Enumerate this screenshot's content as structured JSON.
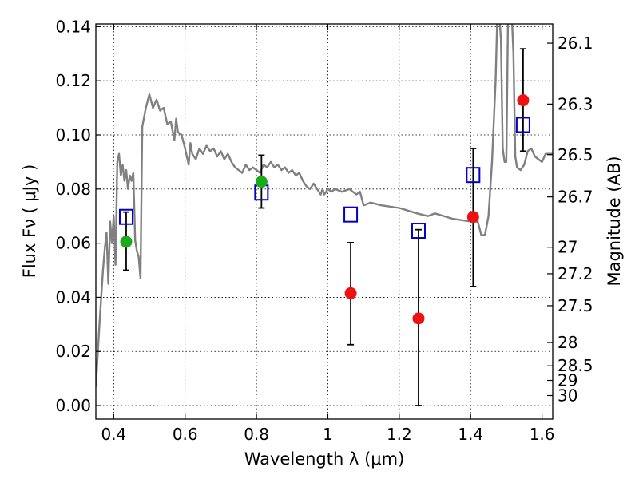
{
  "chart_data": {
    "type": "scatter",
    "xlabel": "Wavelength  λ (μm)",
    "ylabel": "Flux  Fν  ( μJy )",
    "ylabel_right": "Magnitude (AB)",
    "xlim": [
      0.35,
      1.63
    ],
    "ylim": [
      -0.005,
      0.141
    ],
    "grid": true,
    "x_ticks": [
      0.4,
      0.6,
      0.8,
      1.0,
      1.2,
      1.4,
      1.6
    ],
    "x_tick_labels": [
      "0.4",
      "0.6",
      "0.8",
      "1",
      "1.2",
      "1.4",
      "1.6"
    ],
    "y_ticks": [
      0.0,
      0.02,
      0.04,
      0.06,
      0.08,
      0.1,
      0.12,
      0.14
    ],
    "y_tick_labels": [
      "0.00",
      "0.02",
      "0.04",
      "0.06",
      "0.08",
      "0.10",
      "0.12",
      "0.14"
    ],
    "right_ticks": [
      {
        "label": "26.1",
        "flux": 0.1339
      },
      {
        "label": "26.3",
        "flux": 0.1114
      },
      {
        "label": "26.5",
        "flux": 0.0927
      },
      {
        "label": "26.7",
        "flux": 0.0771
      },
      {
        "label": "27",
        "flux": 0.0585
      },
      {
        "label": "27.2",
        "flux": 0.0487
      },
      {
        "label": "27.5",
        "flux": 0.0369
      },
      {
        "label": "28",
        "flux": 0.0233
      },
      {
        "label": "28.5",
        "flux": 0.0147
      },
      {
        "label": "29",
        "flux": 0.0093
      },
      {
        "label": "30",
        "flux": 0.0037
      }
    ],
    "colors": {
      "model": "#808080",
      "detections_green": "#1aaa1a",
      "detections_red": "#ee1111",
      "model_photometry": "#0000cc",
      "errorbar": "#000000",
      "grid": "#000000"
    },
    "series": [
      {
        "type": "line",
        "color": "#808080",
        "points": [
          [
            0.35,
            0.007
          ],
          [
            0.36,
            0.03
          ],
          [
            0.37,
            0.05
          ],
          [
            0.375,
            0.058
          ],
          [
            0.38,
            0.064
          ],
          [
            0.385,
            0.045
          ],
          [
            0.39,
            0.068
          ],
          [
            0.395,
            0.06
          ],
          [
            0.4,
            0.07
          ],
          [
            0.405,
            0.052
          ],
          [
            0.41,
            0.09
          ],
          [
            0.415,
            0.093
          ],
          [
            0.42,
            0.085
          ],
          [
            0.425,
            0.089
          ],
          [
            0.43,
            0.083
          ],
          [
            0.435,
            0.087
          ],
          [
            0.44,
            0.08
          ],
          [
            0.445,
            0.085
          ],
          [
            0.45,
            0.083
          ],
          [
            0.455,
            0.086
          ],
          [
            0.46,
            0.061
          ],
          [
            0.465,
            0.057
          ],
          [
            0.47,
            0.055
          ],
          [
            0.475,
            0.047
          ],
          [
            0.48,
            0.103
          ],
          [
            0.49,
            0.11
          ],
          [
            0.5,
            0.115
          ],
          [
            0.51,
            0.11
          ],
          [
            0.52,
            0.113
          ],
          [
            0.53,
            0.109
          ],
          [
            0.54,
            0.11
          ],
          [
            0.55,
            0.104
          ],
          [
            0.56,
            0.105
          ],
          [
            0.57,
            0.098
          ],
          [
            0.575,
            0.106
          ],
          [
            0.58,
            0.101
          ],
          [
            0.59,
            0.1
          ],
          [
            0.6,
            0.095
          ],
          [
            0.61,
            0.089
          ],
          [
            0.615,
            0.097
          ],
          [
            0.62,
            0.093
          ],
          [
            0.63,
            0.091
          ],
          [
            0.64,
            0.095
          ],
          [
            0.65,
            0.093
          ],
          [
            0.66,
            0.096
          ],
          [
            0.67,
            0.094
          ],
          [
            0.68,
            0.095
          ],
          [
            0.69,
            0.092
          ],
          [
            0.7,
            0.094
          ],
          [
            0.71,
            0.091
          ],
          [
            0.72,
            0.093
          ],
          [
            0.73,
            0.09
          ],
          [
            0.74,
            0.088
          ],
          [
            0.75,
            0.087
          ],
          [
            0.76,
            0.086
          ],
          [
            0.77,
            0.089
          ],
          [
            0.78,
            0.087
          ],
          [
            0.79,
            0.088
          ],
          [
            0.8,
            0.087
          ],
          [
            0.81,
            0.086
          ],
          [
            0.82,
            0.089
          ],
          [
            0.83,
            0.088
          ],
          [
            0.84,
            0.09
          ],
          [
            0.85,
            0.088
          ],
          [
            0.86,
            0.089
          ],
          [
            0.87,
            0.087
          ],
          [
            0.88,
            0.088
          ],
          [
            0.89,
            0.086
          ],
          [
            0.9,
            0.087
          ],
          [
            0.91,
            0.085
          ],
          [
            0.92,
            0.086
          ],
          [
            0.93,
            0.083
          ],
          [
            0.94,
            0.081
          ],
          [
            0.95,
            0.08
          ],
          [
            0.96,
            0.082
          ],
          [
            0.97,
            0.08
          ],
          [
            0.98,
            0.078
          ],
          [
            0.985,
            0.08
          ],
          [
            0.99,
            0.078
          ],
          [
            1.0,
            0.08
          ],
          [
            1.01,
            0.079
          ],
          [
            1.02,
            0.08
          ],
          [
            1.04,
            0.079
          ],
          [
            1.06,
            0.08
          ],
          [
            1.08,
            0.078
          ],
          [
            1.09,
            0.079
          ],
          [
            1.1,
            0.074
          ],
          [
            1.12,
            0.075
          ],
          [
            1.15,
            0.074
          ],
          [
            1.2,
            0.073
          ],
          [
            1.25,
            0.071
          ],
          [
            1.28,
            0.07
          ],
          [
            1.3,
            0.071
          ],
          [
            1.35,
            0.069
          ],
          [
            1.4,
            0.068
          ],
          [
            1.42,
            0.068
          ],
          [
            1.43,
            0.063
          ],
          [
            1.44,
            0.063
          ],
          [
            1.45,
            0.07
          ],
          [
            1.46,
            0.09
          ],
          [
            1.47,
            0.12
          ],
          [
            1.475,
            0.145
          ],
          [
            1.48,
            0.145
          ],
          [
            1.485,
            0.135
          ],
          [
            1.49,
            0.095
          ],
          [
            1.495,
            0.09
          ],
          [
            1.5,
            0.09
          ],
          [
            1.505,
            0.145
          ],
          [
            1.515,
            0.145
          ],
          [
            1.52,
            0.13
          ],
          [
            1.525,
            0.092
          ],
          [
            1.53,
            0.088
          ],
          [
            1.54,
            0.087
          ],
          [
            1.55,
            0.089
          ],
          [
            1.56,
            0.094
          ],
          [
            1.57,
            0.095
          ],
          [
            1.58,
            0.092
          ],
          [
            1.59,
            0.091
          ],
          [
            1.6,
            0.09
          ],
          [
            1.61,
            0.093
          ],
          [
            1.63,
            0.093
          ]
        ]
      },
      {
        "type": "scatter",
        "marker": "circle",
        "color": "#1aaa1a",
        "points": [
          {
            "x": 0.435,
            "y": 0.0605,
            "err_low": 0.0105,
            "err_high": 0.011
          },
          {
            "x": 0.814,
            "y": 0.0827,
            "err_low": 0.0097,
            "err_high": 0.0098
          }
        ]
      },
      {
        "type": "scatter",
        "marker": "circle",
        "color": "#ee1111",
        "points": [
          {
            "x": 1.064,
            "y": 0.0415,
            "err_low": 0.019,
            "err_high": 0.0187
          },
          {
            "x": 1.254,
            "y": 0.0322,
            "err_low": 0.0322,
            "err_high": 0.0328
          },
          {
            "x": 1.407,
            "y": 0.0697,
            "err_low": 0.0257,
            "err_high": 0.0253
          },
          {
            "x": 1.547,
            "y": 0.1128,
            "err_low": 0.0188,
            "err_high": 0.019
          }
        ]
      },
      {
        "type": "scatter",
        "marker": "open-square",
        "color": "#0000cc",
        "points": [
          {
            "x": 0.435,
            "y": 0.0697
          },
          {
            "x": 0.814,
            "y": 0.0787
          },
          {
            "x": 1.064,
            "y": 0.0706
          },
          {
            "x": 1.254,
            "y": 0.0646
          },
          {
            "x": 1.407,
            "y": 0.0852
          },
          {
            "x": 1.547,
            "y": 0.1037
          }
        ]
      }
    ]
  }
}
